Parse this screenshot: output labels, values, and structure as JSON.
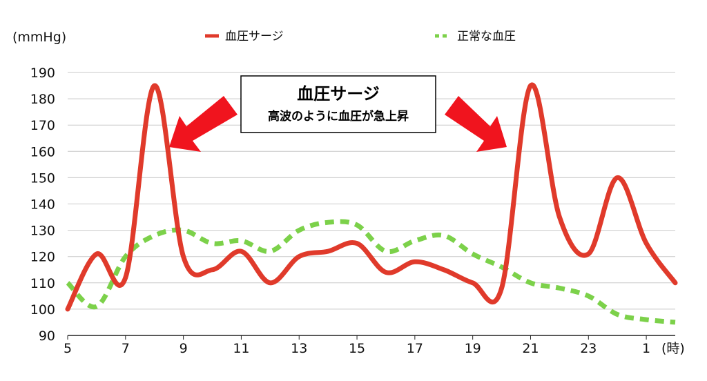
{
  "chart_data": {
    "type": "line",
    "y_unit_label": "(mmHg)",
    "x_unit_label": "(時)",
    "x_ticks": [
      "5",
      "7",
      "9",
      "11",
      "13",
      "15",
      "17",
      "19",
      "21",
      "23",
      "1"
    ],
    "y_ticks": [
      "90",
      "100",
      "110",
      "120",
      "130",
      "140",
      "150",
      "160",
      "170",
      "180",
      "190"
    ],
    "ylim": [
      90,
      190
    ],
    "grid": true,
    "legend_position": "top",
    "series": [
      {
        "name": "血圧サージ",
        "color": "#e03a2b",
        "style": "solid",
        "x": [
          5,
          6,
          7,
          8,
          9,
          10,
          11,
          12,
          13,
          14,
          15,
          16,
          17,
          18,
          19,
          20,
          21,
          22,
          23,
          24,
          25,
          26
        ],
        "values": [
          100,
          121,
          112,
          185,
          120,
          115,
          122,
          110,
          120,
          122,
          125,
          114,
          118,
          115,
          110,
          108,
          185,
          135,
          121,
          150,
          125,
          110
        ]
      },
      {
        "name": "正常な血圧",
        "color": "#7cd14a",
        "style": "dashed",
        "x": [
          5,
          6,
          7,
          8,
          9,
          10,
          11,
          12,
          13,
          14,
          15,
          16,
          17,
          18,
          19,
          20,
          21,
          22,
          23,
          24,
          25,
          26
        ],
        "values": [
          110,
          101,
          120,
          128,
          130,
          125,
          126,
          122,
          130,
          133,
          132,
          122,
          126,
          128,
          121,
          116,
          110,
          108,
          105,
          98,
          96,
          95
        ]
      }
    ],
    "callout": {
      "title": "血圧サージ",
      "subtitle": "高波のように血圧が急上昇"
    },
    "arrow_color": "#f0141e"
  }
}
